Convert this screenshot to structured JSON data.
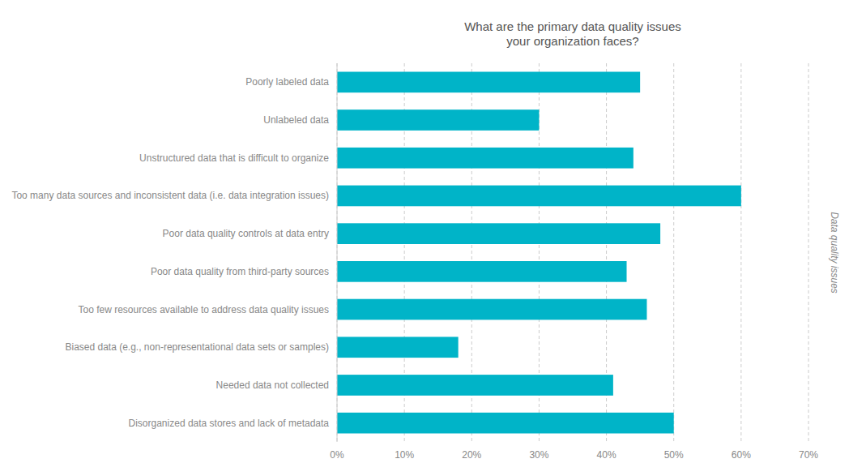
{
  "chart_data": {
    "type": "bar",
    "orientation": "horizontal",
    "title": "What are the primary data quality issues\nyour organization faces?",
    "ylabel": "Data quality issues",
    "categories": [
      "Poorly labeled data",
      "Unlabeled data",
      "Unstructured data that is difficult to organize",
      "Too many data sources and inconsistent data (i.e. data integration issues)",
      "Poor data quality controls at data entry",
      "Poor data quality from third-party sources",
      "Too few resources available to address data quality issues",
      "Biased data (e.g., non-representational data sets or samples)",
      "Needed data not collected",
      "Disorganized data stores and lack of metadata"
    ],
    "values": [
      45,
      30,
      44,
      60,
      48,
      43,
      46,
      18,
      41,
      50
    ],
    "color": "#00b4c8",
    "xlim": [
      0,
      70
    ],
    "xticks": [
      {
        "value": 0,
        "label": "0%"
      },
      {
        "value": 10,
        "label": "10%"
      },
      {
        "value": 20,
        "label": "20%"
      },
      {
        "value": 30,
        "label": "30%"
      },
      {
        "value": 40,
        "label": "40%"
      },
      {
        "value": 50,
        "label": "50%"
      },
      {
        "value": 60,
        "label": "60%"
      },
      {
        "value": 70,
        "label": "70%"
      }
    ],
    "grid": true
  }
}
